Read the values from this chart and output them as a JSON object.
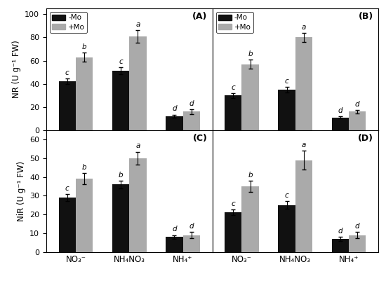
{
  "panels": {
    "A": {
      "label": "(A)",
      "ylabel": "NR (U g⁻¹ FW)",
      "ylim": [
        0,
        105
      ],
      "yticks": [
        0,
        20,
        40,
        60,
        80,
        100
      ],
      "no_mo": [
        42,
        51,
        12
      ],
      "plus_mo": [
        63,
        81,
        16
      ],
      "no_mo_err": [
        2.5,
        3.0,
        1.5
      ],
      "plus_mo_err": [
        4.0,
        5.5,
        2.0
      ],
      "labels_no_mo": [
        "c",
        "c",
        "d"
      ],
      "labels_plus_mo": [
        "b",
        "a",
        "d"
      ]
    },
    "B": {
      "label": "(B)",
      "ylabel": "",
      "ylim": [
        0,
        105
      ],
      "yticks": [
        0,
        20,
        40,
        60,
        80,
        100
      ],
      "no_mo": [
        30,
        35,
        11
      ],
      "plus_mo": [
        57,
        80,
        16
      ],
      "no_mo_err": [
        2.0,
        2.5,
        1.0
      ],
      "plus_mo_err": [
        4.0,
        4.0,
        1.5
      ],
      "labels_no_mo": [
        "c",
        "c",
        "d"
      ],
      "labels_plus_mo": [
        "b",
        "a",
        "d"
      ]
    },
    "C": {
      "label": "(C)",
      "ylabel": "NiR (U g⁻¹ FW)",
      "ylim": [
        0,
        65
      ],
      "yticks": [
        0,
        10,
        20,
        30,
        40,
        50,
        60
      ],
      "no_mo": [
        29,
        36,
        8
      ],
      "plus_mo": [
        39,
        50,
        9
      ],
      "no_mo_err": [
        2.0,
        2.0,
        1.0
      ],
      "plus_mo_err": [
        3.0,
        3.5,
        1.5
      ],
      "labels_no_mo": [
        "c",
        "b",
        "d"
      ],
      "labels_plus_mo": [
        "b",
        "a",
        "d"
      ]
    },
    "D": {
      "label": "(D)",
      "ylabel": "",
      "ylim": [
        0,
        65
      ],
      "yticks": [
        0,
        10,
        20,
        30,
        40,
        50,
        60
      ],
      "no_mo": [
        21,
        25,
        7
      ],
      "plus_mo": [
        35,
        49,
        9
      ],
      "no_mo_err": [
        1.5,
        2.0,
        1.0
      ],
      "plus_mo_err": [
        3.0,
        5.0,
        1.5
      ],
      "labels_no_mo": [
        "c",
        "c",
        "d"
      ],
      "labels_plus_mo": [
        "b",
        "a",
        "d"
      ]
    }
  },
  "categories": [
    "NO₃⁻",
    "NH₄NO₃",
    "NH₄⁺"
  ],
  "bar_width": 0.32,
  "color_no_mo": "#111111",
  "color_plus_mo": "#aaaaaa",
  "background_color": "#ffffff",
  "legend_no_mo": "-Mo",
  "legend_plus_mo": "+Mo",
  "figsize": [
    5.5,
    4.04
  ],
  "dpi": 100
}
